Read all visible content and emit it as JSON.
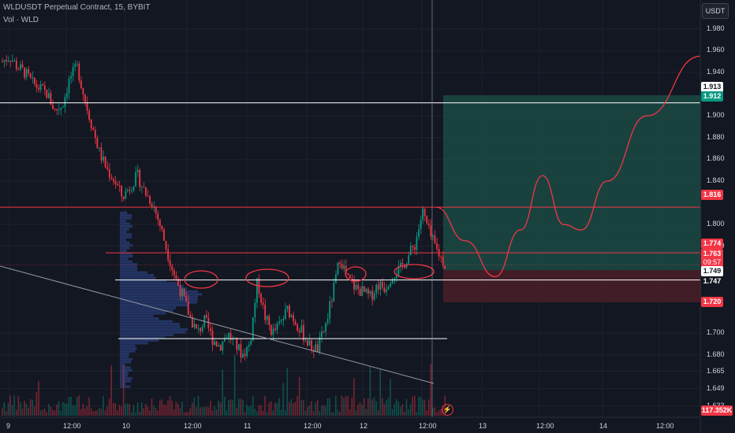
{
  "header": {
    "title": "WLDUSDT Perpetual Contract, 15, BYBIT",
    "volume_label": "Vol · WLD"
  },
  "currency_button": "USDT",
  "y_axis": {
    "ticks": [
      "1.980",
      "1.960",
      "1.940",
      "1.900",
      "1.880",
      "1.860",
      "1.840",
      "1.800",
      "1.780",
      "1.700",
      "1.680",
      "1.665",
      "1.649",
      "1.633"
    ],
    "tick_values": [
      1.98,
      1.96,
      1.94,
      1.9,
      1.88,
      1.86,
      1.84,
      1.8,
      1.78,
      1.7,
      1.68,
      1.665,
      1.649,
      1.633
    ]
  },
  "x_axis": {
    "ticks": [
      "9",
      "12:00",
      "10",
      "12:00",
      "11",
      "12:00",
      "12",
      "12:00",
      "13",
      "12:00",
      "14",
      "12:00"
    ]
  },
  "price_tags": {
    "p1913": "1.913",
    "p1912": "1.912",
    "p1816": "1.816",
    "p1774": "1.774",
    "p1763": "1.763",
    "countdown": "09:57",
    "p1749": "1.749",
    "p1747": "1.747",
    "p1720": "1.720",
    "volume": "117.352K"
  },
  "colors": {
    "background": "#131722",
    "up": "#089981",
    "down": "#f23645",
    "profit_zone": "#1b4a44",
    "loss_zone": "#4a1f28",
    "volume_profile": "#2a3f7a",
    "horizontal_white": "#ffffff",
    "horizontal_red": "#f23645"
  },
  "chart_data": {
    "type": "candlestick",
    "symbol": "WLDUSDT",
    "interval": "15",
    "exchange": "BYBIT",
    "close_path": [
      1.95,
      1.955,
      1.945,
      1.94,
      1.93,
      1.925,
      1.92,
      1.905,
      1.91,
      1.935,
      1.945,
      1.915,
      1.89,
      1.865,
      1.85,
      1.84,
      1.825,
      1.835,
      1.845,
      1.83,
      1.82,
      1.8,
      1.775,
      1.752,
      1.735,
      1.715,
      1.7,
      1.712,
      1.695,
      1.688,
      1.7,
      1.69,
      1.68,
      1.69,
      1.748,
      1.715,
      1.7,
      1.708,
      1.722,
      1.712,
      1.7,
      1.688,
      1.685,
      1.705,
      1.735,
      1.77,
      1.75,
      1.742,
      1.738,
      1.733,
      1.745,
      1.742,
      1.755,
      1.758,
      1.77,
      1.782,
      1.812,
      1.79,
      1.775,
      1.763
    ],
    "horizontal_levels": [
      1.912,
      1.816,
      1.774,
      1.749,
      1.695
    ],
    "position": {
      "entry": 1.749,
      "target": 1.912,
      "stop": 1.72
    },
    "current_price": 1.763,
    "projection_path": [
      1.816,
      1.785,
      1.752,
      1.795,
      1.845,
      1.8,
      1.795,
      1.84,
      1.9,
      1.955
    ],
    "ylim": [
      1.62,
      1.995
    ]
  }
}
